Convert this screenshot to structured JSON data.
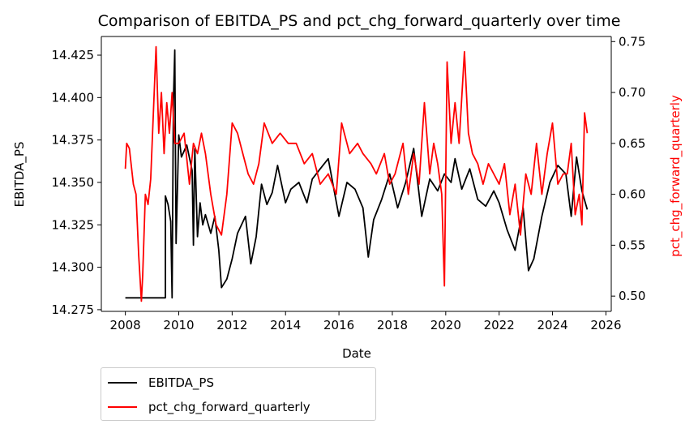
{
  "chart_data": {
    "type": "line",
    "title": "Comparison of EBITDA_PS and pct_chg_forward_quarterly over time",
    "xlabel": "Date",
    "ylabel_left": "EBITDA_PS",
    "ylabel_right": "pct_chg_forward_quarterly",
    "xlim": [
      2007.1,
      2026.2
    ],
    "ylim_left": [
      14.274,
      14.436
    ],
    "ylim_right": [
      0.485,
      0.755
    ],
    "x_ticks": [
      2008,
      2010,
      2012,
      2014,
      2016,
      2018,
      2020,
      2022,
      2024,
      2026
    ],
    "x_tick_labels": [
      "2008",
      "2010",
      "2012",
      "2014",
      "2016",
      "2018",
      "2020",
      "2022",
      "2024",
      "2026"
    ],
    "y_left_ticks": [
      14.275,
      14.3,
      14.325,
      14.35,
      14.375,
      14.4,
      14.425
    ],
    "y_left_tick_labels": [
      "14.275",
      "14.300",
      "14.325",
      "14.350",
      "14.375",
      "14.400",
      "14.425"
    ],
    "y_right_ticks": [
      0.5,
      0.55,
      0.6,
      0.65,
      0.7,
      0.75
    ],
    "y_right_tick_labels": [
      "0.50",
      "0.55",
      "0.60",
      "0.65",
      "0.70",
      "0.75"
    ],
    "grid": false,
    "legend_placement": "below-left",
    "series": [
      {
        "name": "EBITDA_PS",
        "axis": "left",
        "color": "#000000",
        "x": [
          2008.0,
          2009.5,
          2009.5,
          2009.6,
          2009.7,
          2009.75,
          2009.8,
          2009.85,
          2009.9,
          2010.0,
          2010.1,
          2010.3,
          2010.5,
          2010.55,
          2010.6,
          2010.7,
          2010.8,
          2010.9,
          2011.0,
          2011.2,
          2011.35,
          2011.5,
          2011.6,
          2011.8,
          2012.0,
          2012.2,
          2012.5,
          2012.7,
          2012.9,
          2013.1,
          2013.3,
          2013.5,
          2013.7,
          2014.0,
          2014.2,
          2014.5,
          2014.8,
          2015.0,
          2015.3,
          2015.6,
          2016.0,
          2016.3,
          2016.6,
          2016.9,
          2017.1,
          2017.3,
          2017.6,
          2017.9,
          2018.2,
          2018.5,
          2018.8,
          2019.1,
          2019.4,
          2019.7,
          2019.95,
          2020.2,
          2020.35,
          2020.6,
          2020.9,
          2021.2,
          2021.5,
          2021.8,
          2022.0,
          2022.3,
          2022.6,
          2022.9,
          2023.1,
          2023.3,
          2023.6,
          2023.9,
          2024.2,
          2024.5,
          2024.7,
          2024.9,
          2025.1,
          2025.3
        ],
        "values": [
          14.282,
          14.282,
          14.342,
          14.337,
          14.327,
          14.282,
          14.398,
          14.428,
          14.314,
          14.378,
          14.365,
          14.372,
          14.357,
          14.313,
          14.37,
          14.318,
          14.338,
          14.325,
          14.331,
          14.32,
          14.33,
          14.31,
          14.288,
          14.293,
          14.305,
          14.32,
          14.33,
          14.302,
          14.318,
          14.349,
          14.337,
          14.344,
          14.36,
          14.338,
          14.346,
          14.35,
          14.338,
          14.352,
          14.358,
          14.364,
          14.33,
          14.35,
          14.346,
          14.335,
          14.306,
          14.328,
          14.34,
          14.355,
          14.335,
          14.35,
          14.37,
          14.33,
          14.352,
          14.345,
          14.355,
          14.35,
          14.364,
          14.346,
          14.358,
          14.34,
          14.336,
          14.345,
          14.338,
          14.322,
          14.31,
          14.335,
          14.298,
          14.305,
          14.33,
          14.35,
          14.36,
          14.355,
          14.33,
          14.365,
          14.345,
          14.334
        ]
      },
      {
        "name": "pct_chg_forward_quarterly",
        "axis": "right",
        "color": "#ff0000",
        "x": [
          2008.0,
          2008.05,
          2008.15,
          2008.3,
          2008.4,
          2008.5,
          2008.6,
          2008.65,
          2008.75,
          2008.85,
          2008.95,
          2009.05,
          2009.15,
          2009.25,
          2009.35,
          2009.45,
          2009.55,
          2009.65,
          2009.75,
          2009.85,
          2010.0,
          2010.2,
          2010.4,
          2010.55,
          2010.7,
          2010.85,
          2011.0,
          2011.2,
          2011.4,
          2011.6,
          2011.8,
          2012.0,
          2012.2,
          2012.4,
          2012.6,
          2012.8,
          2013.0,
          2013.2,
          2013.5,
          2013.8,
          2014.1,
          2014.4,
          2014.7,
          2015.0,
          2015.3,
          2015.6,
          2015.9,
          2016.1,
          2016.4,
          2016.7,
          2016.9,
          2017.2,
          2017.4,
          2017.7,
          2017.9,
          2018.1,
          2018.4,
          2018.6,
          2018.8,
          2019.0,
          2019.2,
          2019.4,
          2019.55,
          2019.7,
          2019.85,
          2019.95,
          2020.05,
          2020.2,
          2020.35,
          2020.5,
          2020.7,
          2020.85,
          2021.0,
          2021.2,
          2021.4,
          2021.6,
          2021.8,
          2022.0,
          2022.2,
          2022.4,
          2022.6,
          2022.8,
          2023.0,
          2023.2,
          2023.4,
          2023.6,
          2023.8,
          2024.0,
          2024.2,
          2024.4,
          2024.55,
          2024.7,
          2024.85,
          2025.0,
          2025.1,
          2025.2,
          2025.3
        ],
        "values": [
          0.625,
          0.65,
          0.645,
          0.61,
          0.6,
          0.54,
          0.495,
          0.52,
          0.6,
          0.59,
          0.615,
          0.68,
          0.745,
          0.66,
          0.7,
          0.64,
          0.69,
          0.66,
          0.7,
          0.65,
          0.65,
          0.66,
          0.61,
          0.65,
          0.64,
          0.66,
          0.64,
          0.6,
          0.57,
          0.56,
          0.6,
          0.67,
          0.66,
          0.64,
          0.62,
          0.61,
          0.63,
          0.67,
          0.65,
          0.66,
          0.65,
          0.65,
          0.63,
          0.64,
          0.61,
          0.62,
          0.6,
          0.67,
          0.64,
          0.65,
          0.64,
          0.63,
          0.62,
          0.64,
          0.61,
          0.62,
          0.65,
          0.6,
          0.64,
          0.61,
          0.69,
          0.62,
          0.65,
          0.63,
          0.6,
          0.51,
          0.73,
          0.65,
          0.69,
          0.65,
          0.74,
          0.66,
          0.64,
          0.63,
          0.61,
          0.63,
          0.62,
          0.61,
          0.63,
          0.58,
          0.61,
          0.56,
          0.62,
          0.6,
          0.65,
          0.6,
          0.64,
          0.67,
          0.61,
          0.62,
          0.62,
          0.65,
          0.58,
          0.6,
          0.57,
          0.68,
          0.66
        ]
      }
    ]
  }
}
